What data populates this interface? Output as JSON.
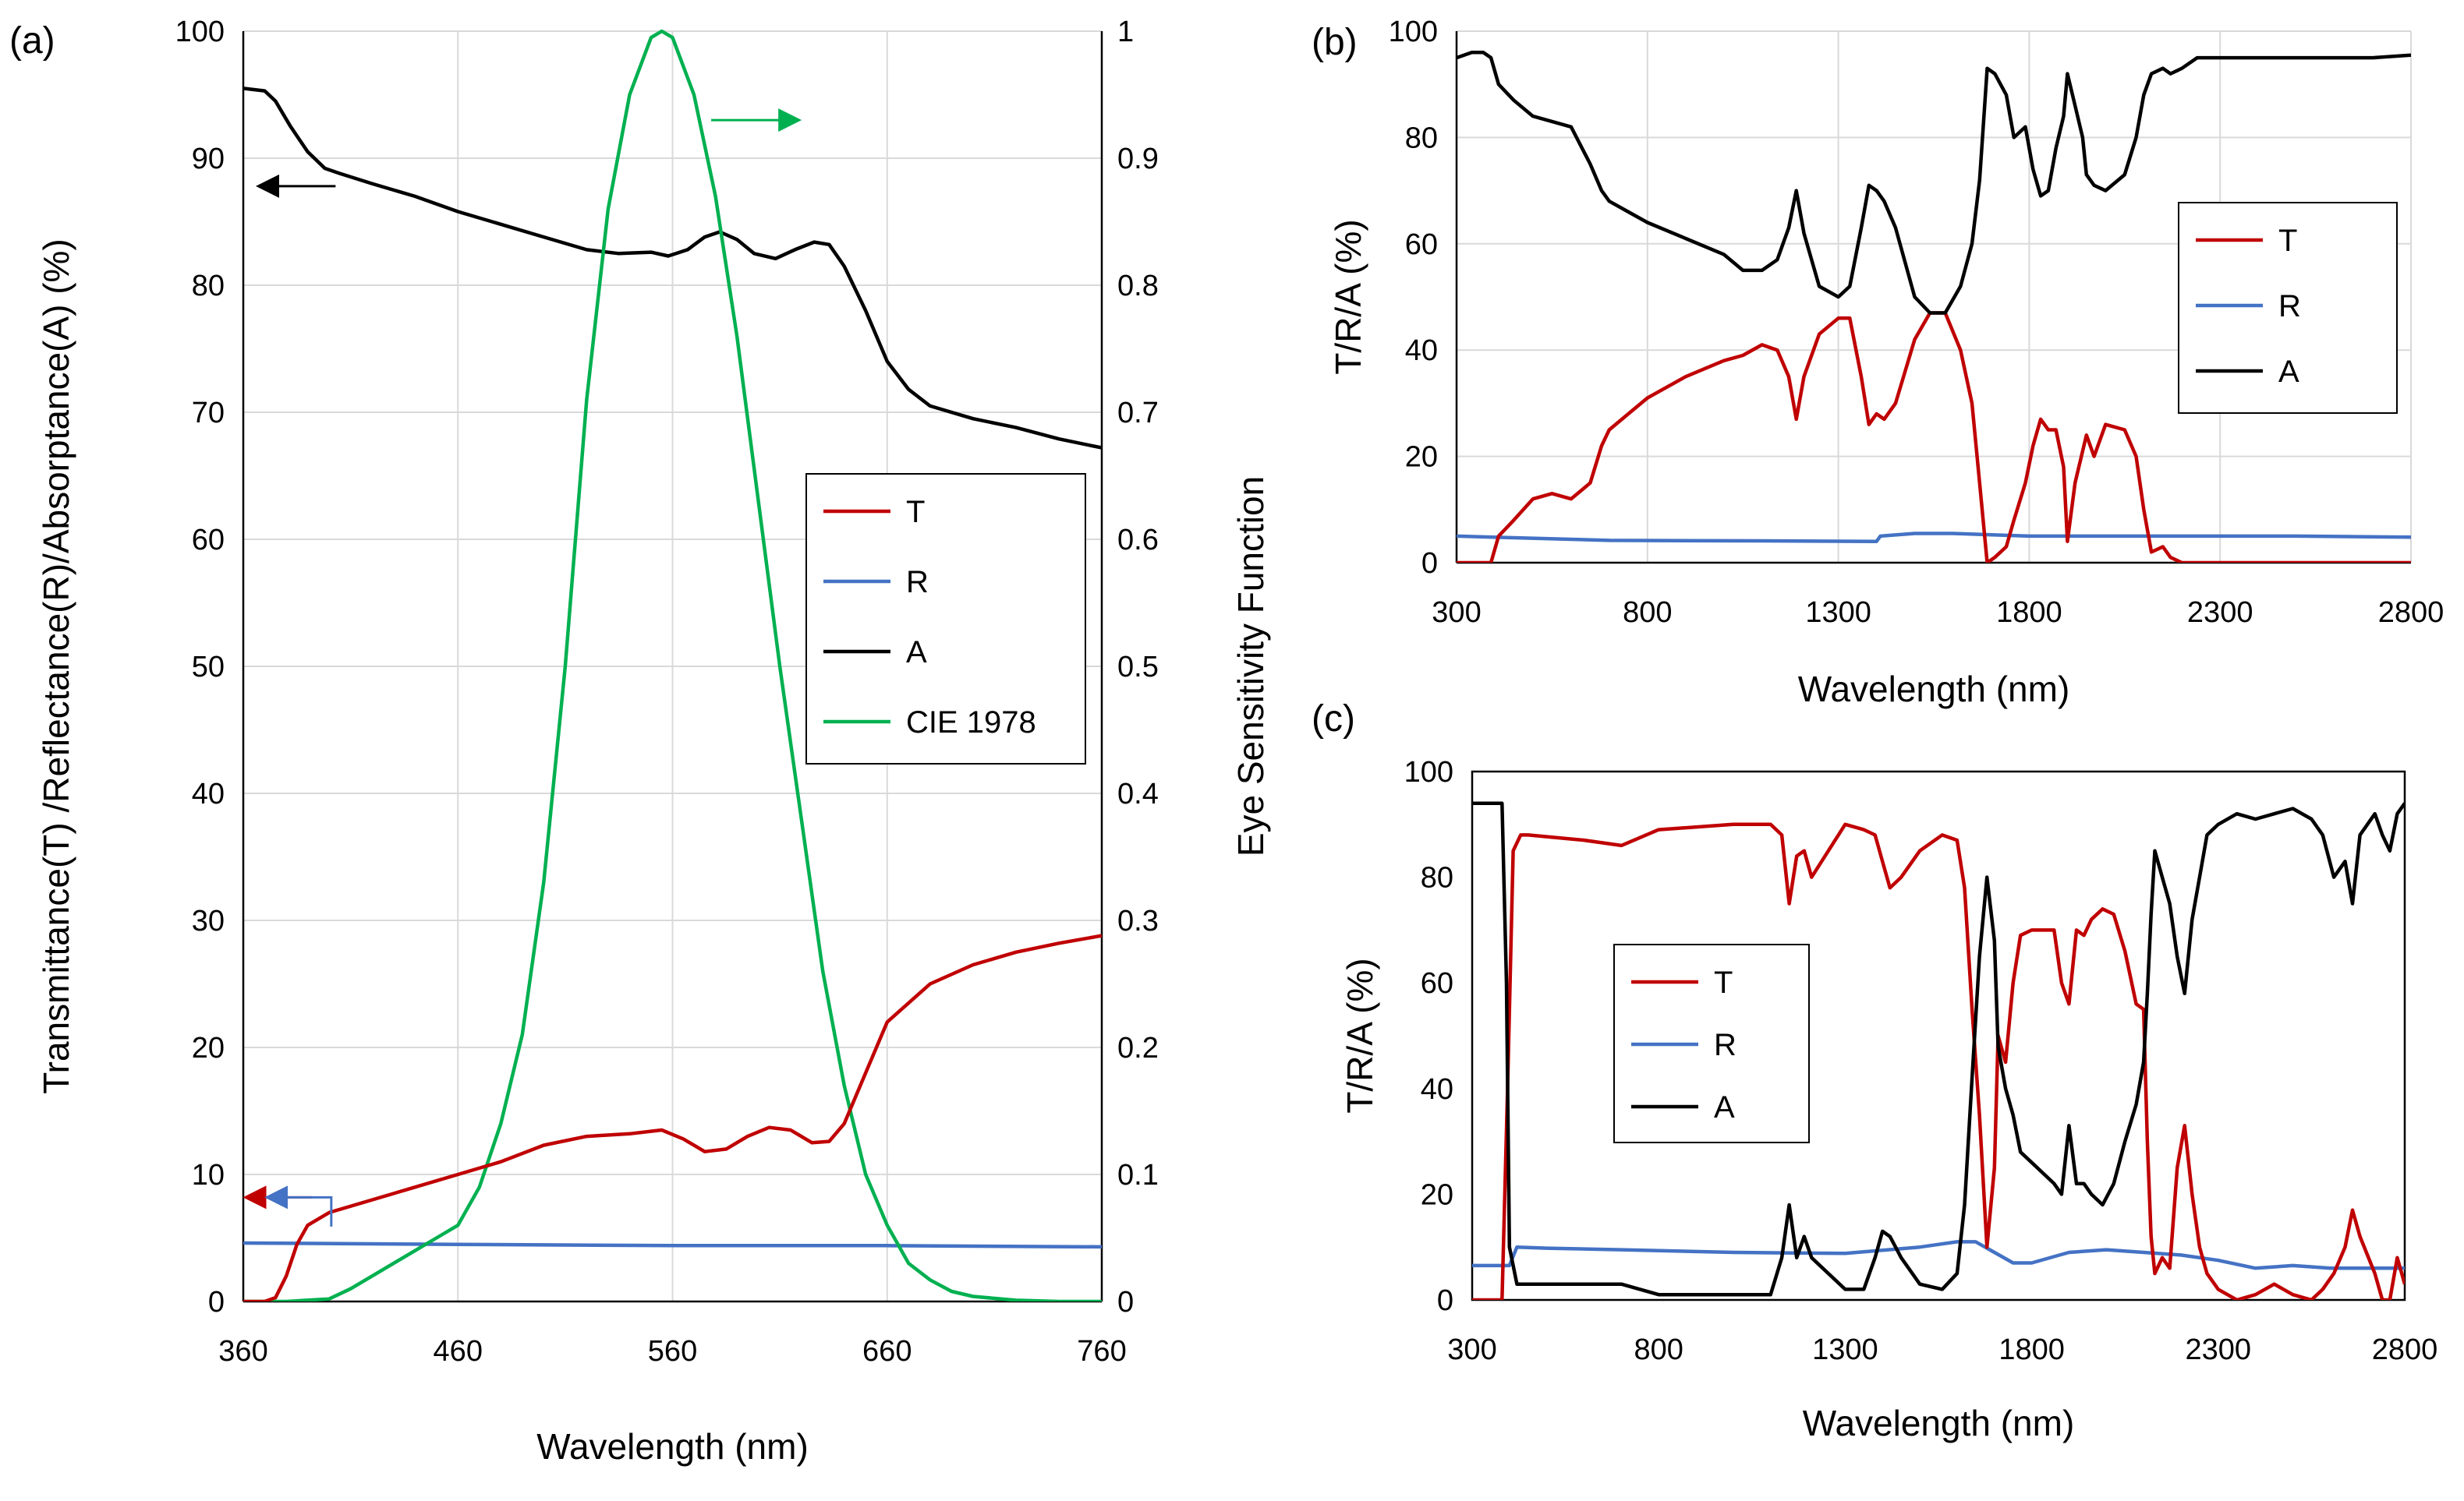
{
  "colors": {
    "T": "#c00000",
    "R": "#4472c4",
    "A": "#000000",
    "CIE": "#00b050",
    "grid": "#d9d9d9"
  },
  "chart_data": [
    {
      "id": "a",
      "panel_label": "(a)",
      "type": "line",
      "xlabel": "Wavelength (nm)",
      "ylabel": "Transmittance(T) /Reflectance(R)/Absorptance(A) (%)",
      "y2label": "Eye Sensitivity Function",
      "xlim": [
        360,
        760
      ],
      "ylim": [
        0,
        100
      ],
      "y2lim": [
        0,
        1
      ],
      "xticks": [
        360,
        460,
        560,
        660,
        760
      ],
      "yticks": [
        0,
        10,
        20,
        30,
        40,
        50,
        60,
        70,
        80,
        90,
        100
      ],
      "y2ticks": [
        0,
        0.1,
        0.2,
        0.3,
        0.4,
        0.5,
        0.6,
        0.7,
        0.8,
        0.9,
        1
      ],
      "grid": true,
      "legend": {
        "placement": "center-right",
        "entries": [
          "T",
          "R",
          "A",
          "CIE 1978"
        ]
      },
      "series": [
        {
          "name": "T",
          "axis": "left",
          "x": [
            360,
            370,
            375,
            380,
            385,
            390,
            400,
            420,
            440,
            460,
            480,
            500,
            520,
            540,
            555,
            565,
            575,
            585,
            595,
            605,
            615,
            625,
            633,
            640,
            650,
            660,
            680,
            700,
            720,
            740,
            760
          ],
          "y": [
            0,
            0,
            0.3,
            2,
            4.5,
            6,
            7,
            8,
            9,
            10,
            11,
            12.3,
            13,
            13.2,
            13.5,
            12.8,
            11.8,
            12,
            13,
            13.7,
            13.5,
            12.5,
            12.6,
            14,
            18,
            22,
            25,
            26.5,
            27.5,
            28.2,
            28.8
          ]
        },
        {
          "name": "R",
          "axis": "left",
          "x": [
            360,
            460,
            560,
            660,
            760
          ],
          "y": [
            4.6,
            4.5,
            4.4,
            4.4,
            4.3
          ]
        },
        {
          "name": "A",
          "axis": "left",
          "x": [
            360,
            370,
            375,
            382,
            390,
            398,
            405,
            420,
            440,
            460,
            480,
            500,
            520,
            535,
            550,
            558,
            567,
            575,
            582,
            590,
            598,
            608,
            617,
            626,
            633,
            640,
            650,
            660,
            670,
            680,
            700,
            720,
            740,
            760
          ],
          "y": [
            95.5,
            95.3,
            94.5,
            92.5,
            90.5,
            89.2,
            88.8,
            88,
            87,
            85.8,
            84.8,
            83.8,
            82.8,
            82.5,
            82.6,
            82.3,
            82.8,
            83.8,
            84.2,
            83.6,
            82.5,
            82.1,
            82.8,
            83.4,
            83.2,
            81.5,
            78,
            74,
            71.8,
            70.5,
            69.5,
            68.8,
            67.9,
            67.2
          ]
        },
        {
          "name": "CIE 1978",
          "axis": "right",
          "x": [
            360,
            380,
            400,
            410,
            420,
            430,
            440,
            450,
            460,
            470,
            480,
            490,
            500,
            510,
            520,
            530,
            540,
            550,
            555,
            560,
            570,
            580,
            590,
            600,
            610,
            620,
            630,
            640,
            650,
            660,
            670,
            680,
            690,
            700,
            720,
            740,
            760
          ],
          "y": [
            0,
            0,
            0.002,
            0.01,
            0.02,
            0.03,
            0.04,
            0.05,
            0.06,
            0.09,
            0.14,
            0.21,
            0.33,
            0.5,
            0.71,
            0.86,
            0.95,
            0.995,
            1,
            0.995,
            0.95,
            0.87,
            0.76,
            0.63,
            0.5,
            0.38,
            0.26,
            0.17,
            0.1,
            0.06,
            0.03,
            0.017,
            0.008,
            0.004,
            0.001,
            0,
            0
          ]
        }
      ],
      "annotations": [
        {
          "text": "arrow-left",
          "series": "A"
        },
        {
          "text": "arrow-right",
          "series": "CIE 1978"
        },
        {
          "text": "arrow-left",
          "series": "T"
        },
        {
          "text": "arrow-left",
          "series": "R"
        }
      ]
    },
    {
      "id": "b",
      "panel_label": "(b)",
      "type": "line",
      "xlabel": "Wavelength (nm)",
      "ylabel": "T/R/A (%)",
      "xlim": [
        300,
        2800
      ],
      "ylim": [
        0,
        100
      ],
      "xticks": [
        300,
        800,
        1300,
        1800,
        2300,
        2800
      ],
      "yticks": [
        0,
        20,
        40,
        60,
        80,
        100
      ],
      "grid": true,
      "legend": {
        "placement": "center-right",
        "entries": [
          "T",
          "R",
          "A"
        ]
      },
      "series": [
        {
          "name": "T",
          "x": [
            300,
            350,
            370,
            390,
            410,
            450,
            500,
            550,
            600,
            650,
            680,
            700,
            750,
            800,
            900,
            1000,
            1050,
            1100,
            1140,
            1170,
            1190,
            1210,
            1250,
            1300,
            1330,
            1360,
            1380,
            1400,
            1420,
            1450,
            1500,
            1540,
            1580,
            1620,
            1650,
            1670,
            1690,
            1710,
            1740,
            1760,
            1790,
            1810,
            1830,
            1850,
            1870,
            1890,
            1900,
            1920,
            1940,
            1950,
            1970,
            2000,
            2050,
            2080,
            2100,
            2120,
            2150,
            2170,
            2200,
            2240,
            2300,
            2400,
            2500,
            2600,
            2700,
            2800
          ],
          "y": [
            0,
            0,
            0,
            0,
            5,
            8,
            12,
            13,
            12,
            15,
            22,
            25,
            28,
            31,
            35,
            38,
            39,
            41,
            40,
            35,
            27,
            35,
            43,
            46,
            46,
            35,
            26,
            28,
            27,
            30,
            42,
            47,
            47,
            40,
            30,
            15,
            0,
            1,
            3,
            8,
            15,
            22,
            27,
            25,
            25,
            18,
            4,
            15,
            21,
            24,
            20,
            26,
            25,
            20,
            10,
            2,
            3,
            1,
            0,
            0,
            0,
            0,
            0,
            0,
            0,
            0
          ]
        },
        {
          "name": "R",
          "x": [
            300,
            700,
            1100,
            1400,
            1410,
            1500,
            1600,
            1800,
            2100,
            2500,
            2800
          ],
          "y": [
            5,
            4.2,
            4.1,
            4,
            5,
            5.5,
            5.5,
            5,
            5,
            5,
            4.8
          ]
        },
        {
          "name": "A",
          "x": [
            300,
            340,
            370,
            390,
            410,
            450,
            500,
            550,
            600,
            650,
            680,
            700,
            750,
            800,
            900,
            1000,
            1050,
            1100,
            1140,
            1170,
            1190,
            1210,
            1250,
            1300,
            1330,
            1360,
            1380,
            1400,
            1420,
            1450,
            1500,
            1540,
            1580,
            1620,
            1650,
            1670,
            1690,
            1710,
            1740,
            1760,
            1790,
            1810,
            1830,
            1850,
            1870,
            1890,
            1900,
            1920,
            1940,
            1950,
            1970,
            2000,
            2050,
            2080,
            2100,
            2120,
            2150,
            2170,
            2200,
            2240,
            2300,
            2400,
            2500,
            2600,
            2700,
            2800
          ],
          "y": [
            95,
            96,
            96,
            95,
            90,
            87,
            84,
            83,
            82,
            75,
            70,
            68,
            66,
            64,
            61,
            58,
            55,
            55,
            57,
            63,
            70,
            62,
            52,
            50,
            52,
            63,
            71,
            70,
            68,
            63,
            50,
            47,
            47,
            52,
            60,
            72,
            93,
            92,
            88,
            80,
            82,
            74,
            69,
            70,
            78,
            84,
            92,
            86,
            80,
            73,
            71,
            70,
            73,
            80,
            88,
            92,
            93,
            92,
            93,
            95,
            95,
            95,
            95,
            95,
            95,
            95.5
          ]
        }
      ]
    },
    {
      "id": "c",
      "panel_label": "(c)",
      "type": "line",
      "xlabel": "Wavelength (nm)",
      "ylabel": "T/R/A (%)",
      "xlim": [
        300,
        2800
      ],
      "ylim": [
        0,
        100
      ],
      "xticks": [
        300,
        800,
        1300,
        1800,
        2300,
        2800
      ],
      "yticks": [
        0,
        20,
        40,
        60,
        80,
        100
      ],
      "grid": false,
      "legend": {
        "placement": "center-left",
        "entries": [
          "T",
          "R",
          "A"
        ]
      },
      "series": [
        {
          "name": "T",
          "x": [
            300,
            380,
            395,
            410,
            430,
            450,
            600,
            700,
            800,
            1000,
            1100,
            1130,
            1150,
            1170,
            1190,
            1210,
            1300,
            1350,
            1380,
            1400,
            1420,
            1450,
            1500,
            1560,
            1600,
            1620,
            1640,
            1660,
            1680,
            1700,
            1710,
            1730,
            1750,
            1770,
            1800,
            1830,
            1860,
            1880,
            1900,
            1920,
            1940,
            1960,
            1990,
            2020,
            2050,
            2080,
            2100,
            2110,
            2120,
            2130,
            2150,
            2170,
            2190,
            2210,
            2230,
            2250,
            2270,
            2300,
            2350,
            2400,
            2450,
            2500,
            2550,
            2580,
            2610,
            2640,
            2660,
            2680,
            2720,
            2740,
            2760,
            2780,
            2800
          ],
          "y": [
            0,
            0,
            40,
            85,
            88,
            88,
            87,
            86,
            89,
            90,
            90,
            88,
            75,
            84,
            85,
            80,
            90,
            89,
            88,
            83,
            78,
            80,
            85,
            88,
            87,
            78,
            55,
            35,
            10,
            25,
            50,
            45,
            60,
            69,
            70,
            70,
            70,
            60,
            56,
            70,
            69,
            72,
            74,
            73,
            66,
            56,
            55,
            30,
            12,
            5,
            8,
            6,
            25,
            33,
            20,
            10,
            5,
            2,
            0,
            1,
            3,
            1,
            0,
            2,
            5,
            10,
            17,
            12,
            5,
            0,
            0,
            8,
            3
          ]
        },
        {
          "name": "R",
          "x": [
            300,
            400,
            420,
            500,
            700,
            1000,
            1300,
            1500,
            1600,
            1650,
            1700,
            1750,
            1800,
            1900,
            2000,
            2100,
            2200,
            2300,
            2400,
            2500,
            2600,
            2700,
            2800
          ],
          "y": [
            6.5,
            6.5,
            10,
            9.8,
            9.5,
            9,
            8.8,
            10,
            11,
            11,
            9,
            7,
            7,
            9,
            9.5,
            9,
            8.5,
            7.5,
            6,
            6.5,
            6,
            6,
            6
          ]
        },
        {
          "name": "A",
          "x": [
            300,
            380,
            392,
            400,
            420,
            500,
            600,
            700,
            800,
            1000,
            1100,
            1130,
            1150,
            1170,
            1190,
            1210,
            1300,
            1350,
            1380,
            1400,
            1420,
            1450,
            1500,
            1560,
            1600,
            1620,
            1640,
            1660,
            1680,
            1700,
            1710,
            1730,
            1750,
            1770,
            1800,
            1830,
            1860,
            1880,
            1900,
            1920,
            1940,
            1960,
            1990,
            2020,
            2050,
            2080,
            2100,
            2110,
            2120,
            2130,
            2150,
            2170,
            2190,
            2210,
            2230,
            2250,
            2270,
            2300,
            2350,
            2400,
            2450,
            2500,
            2550,
            2580,
            2610,
            2640,
            2660,
            2680,
            2720,
            2740,
            2760,
            2780,
            2800
          ],
          "y": [
            94,
            94,
            60,
            10,
            3,
            3,
            3,
            3,
            1,
            1,
            1,
            8,
            18,
            8,
            12,
            8,
            2,
            2,
            8,
            13,
            12,
            8,
            3,
            2,
            5,
            18,
            42,
            65,
            80,
            68,
            48,
            40,
            35,
            28,
            26,
            24,
            22,
            20,
            33,
            22,
            22,
            20,
            18,
            22,
            30,
            37,
            45,
            58,
            73,
            85,
            80,
            75,
            65,
            58,
            72,
            80,
            88,
            90,
            92,
            91,
            92,
            93,
            91,
            88,
            80,
            83,
            75,
            88,
            92,
            88,
            85,
            92,
            94
          ]
        }
      ]
    }
  ]
}
